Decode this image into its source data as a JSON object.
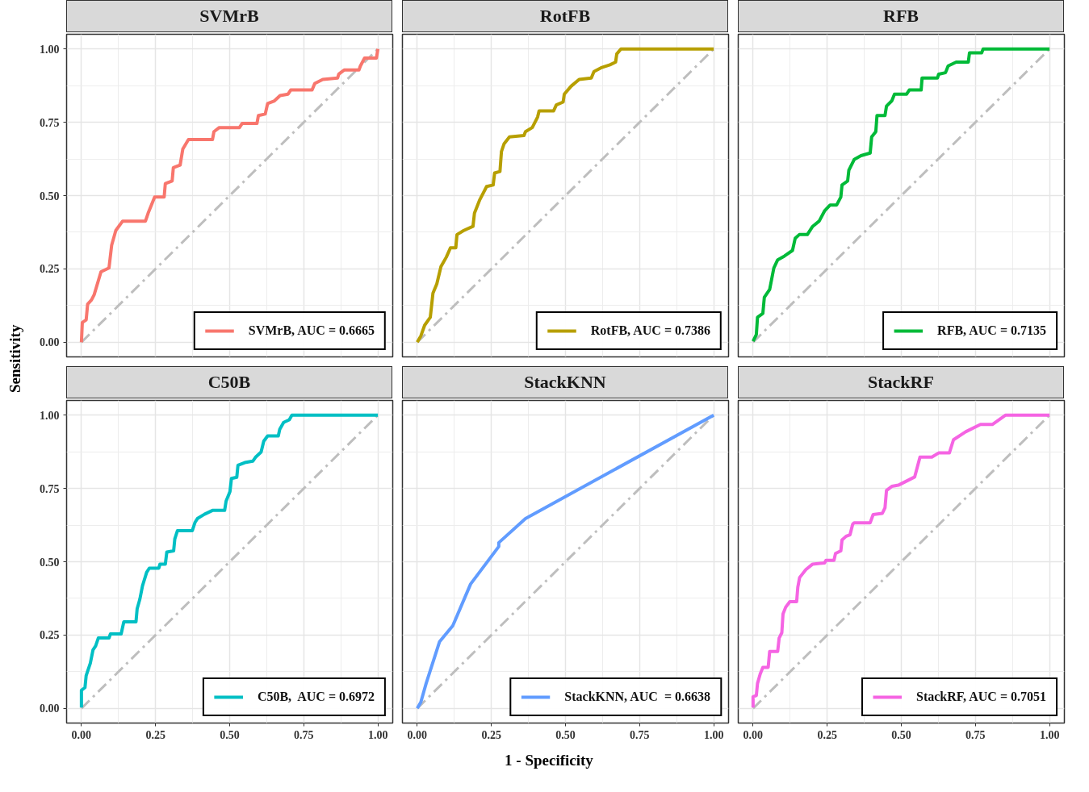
{
  "chart_data": [
    {
      "type": "line",
      "title": "SVMrB",
      "ylabel": "Sensitivity",
      "xlim": [
        -0.05,
        1.05
      ],
      "ylim": [
        -0.05,
        1.05
      ],
      "xticks": [
        0,
        0.25,
        0.5,
        0.75,
        1
      ],
      "yticks": [
        {
          "value": 0,
          "label": "0.00"
        },
        {
          "value": 0.25,
          "label": "0.25"
        },
        {
          "value": 0.5,
          "label": "0.50"
        },
        {
          "value": 0.75,
          "label": "0.75"
        },
        {
          "value": 1,
          "label": "1.00"
        }
      ],
      "tick_labels": "y",
      "grid": true,
      "legend": "bottom right",
      "series": [
        {
          "type": "line",
          "color": "#bebebe",
          "line_style": "dashed",
          "x": [
            0,
            1
          ],
          "values": [
            0,
            1
          ]
        },
        {
          "name": "SVMrB, AUC = 0.6665",
          "color": "#f8766d",
          "x": [
            0,
            0.003,
            0.016,
            0.021,
            0.034,
            0.043,
            0.066,
            0.093,
            0.102,
            0.116,
            0.139,
            0.216,
            0.225,
            0.247,
            0.279,
            0.283,
            0.306,
            0.31,
            0.333,
            0.342,
            0.361,
            0.442,
            0.447,
            0.465,
            0.533,
            0.542,
            0.592,
            0.597,
            0.62,
            0.628,
            0.651,
            0.67,
            0.697,
            0.706,
            0.778,
            0.787,
            0.814,
            0.864,
            0.868,
            0.886,
            0.936,
            0.941,
            0.955,
            0.995,
            1
          ],
          "values": [
            0,
            0.067,
            0.076,
            0.13,
            0.144,
            0.162,
            0.24,
            0.253,
            0.331,
            0.381,
            0.413,
            0.413,
            0.44,
            0.495,
            0.495,
            0.541,
            0.55,
            0.595,
            0.604,
            0.659,
            0.691,
            0.691,
            0.718,
            0.732,
            0.732,
            0.746,
            0.746,
            0.773,
            0.778,
            0.814,
            0.823,
            0.841,
            0.846,
            0.86,
            0.86,
            0.882,
            0.896,
            0.901,
            0.914,
            0.928,
            0.928,
            0.942,
            0.969,
            0.969,
            1
          ]
        }
      ]
    },
    {
      "type": "line",
      "title": "RotFB",
      "xlim": [
        -0.05,
        1.05
      ],
      "ylim": [
        -0.05,
        1.05
      ],
      "xticks": [
        0,
        0.25,
        0.5,
        0.75,
        1
      ],
      "yticks": [
        0,
        0.25,
        0.5,
        0.75,
        1
      ],
      "tick_labels": false,
      "grid": true,
      "legend": "bottom right",
      "series": [
        {
          "type": "line",
          "color": "#bebebe",
          "line_style": "dashed",
          "x": [
            0,
            1
          ],
          "values": [
            0,
            1
          ]
        },
        {
          "name": "RotFB, AUC = 0.7386",
          "color": "#b79f00",
          "x": [
            0,
            0.012,
            0.025,
            0.044,
            0.053,
            0.066,
            0.08,
            0.098,
            0.112,
            0.13,
            0.134,
            0.157,
            0.188,
            0.193,
            0.211,
            0.234,
            0.256,
            0.261,
            0.279,
            0.284,
            0.293,
            0.311,
            0.36,
            0.365,
            0.388,
            0.406,
            0.411,
            0.46,
            0.469,
            0.492,
            0.496,
            0.519,
            0.546,
            0.587,
            0.596,
            0.623,
            0.65,
            0.669,
            0.673,
            0.687,
            1
          ],
          "values": [
            0,
            0.021,
            0.058,
            0.085,
            0.167,
            0.199,
            0.258,
            0.29,
            0.322,
            0.322,
            0.367,
            0.381,
            0.395,
            0.44,
            0.486,
            0.531,
            0.536,
            0.577,
            0.582,
            0.65,
            0.677,
            0.7,
            0.705,
            0.718,
            0.732,
            0.768,
            0.789,
            0.789,
            0.809,
            0.819,
            0.846,
            0.873,
            0.896,
            0.901,
            0.923,
            0.937,
            0.946,
            0.955,
            0.983,
            1,
            1
          ]
        }
      ]
    },
    {
      "type": "line",
      "title": "RFB",
      "xlim": [
        -0.05,
        1.05
      ],
      "ylim": [
        -0.05,
        1.05
      ],
      "xticks": [
        0,
        0.25,
        0.5,
        0.75,
        1
      ],
      "yticks": [
        0,
        0.25,
        0.5,
        0.75,
        1
      ],
      "tick_labels": false,
      "grid": true,
      "legend": "bottom right",
      "series": [
        {
          "type": "line",
          "color": "#bebebe",
          "line_style": "dashed",
          "x": [
            0,
            1
          ],
          "values": [
            0,
            1
          ]
        },
        {
          "name": "RFB, AUC = 0.7135",
          "color": "#00ba38",
          "x": [
            0,
            0.011,
            0.015,
            0.033,
            0.038,
            0.056,
            0.07,
            0.083,
            0.106,
            0.133,
            0.142,
            0.156,
            0.183,
            0.201,
            0.223,
            0.242,
            0.26,
            0.282,
            0.296,
            0.3,
            0.319,
            0.323,
            0.341,
            0.364,
            0.395,
            0.4,
            0.414,
            0.418,
            0.445,
            0.45,
            0.468,
            0.477,
            0.518,
            0.527,
            0.567,
            0.57,
            0.622,
            0.626,
            0.649,
            0.658,
            0.685,
            0.726,
            0.73,
            0.771,
            0.776,
            1
          ],
          "values": [
            0.003,
            0.026,
            0.085,
            0.098,
            0.153,
            0.18,
            0.253,
            0.281,
            0.294,
            0.313,
            0.354,
            0.367,
            0.367,
            0.395,
            0.413,
            0.449,
            0.468,
            0.468,
            0.495,
            0.536,
            0.55,
            0.586,
            0.623,
            0.636,
            0.645,
            0.7,
            0.718,
            0.773,
            0.773,
            0.805,
            0.823,
            0.846,
            0.846,
            0.86,
            0.86,
            0.901,
            0.901,
            0.914,
            0.919,
            0.942,
            0.955,
            0.955,
            0.987,
            0.987,
            1,
            1
          ]
        }
      ]
    },
    {
      "type": "line",
      "title": "C50B",
      "xlim": [
        -0.05,
        1.05
      ],
      "ylim": [
        -0.05,
        1.05
      ],
      "xticks": [
        {
          "value": 0,
          "label": "0.00"
        },
        {
          "value": 0.25,
          "label": "0.25"
        },
        {
          "value": 0.5,
          "label": "0.50"
        },
        {
          "value": 0.75,
          "label": "0.75"
        },
        {
          "value": 1,
          "label": "1.00"
        }
      ],
      "yticks": [
        {
          "value": 0,
          "label": "0.00"
        },
        {
          "value": 0.25,
          "label": "0.25"
        },
        {
          "value": 0.5,
          "label": "0.50"
        },
        {
          "value": 0.75,
          "label": "0.75"
        },
        {
          "value": 1,
          "label": "1.00"
        }
      ],
      "grid": true,
      "legend": "bottom right",
      "series": [
        {
          "type": "line",
          "color": "#bebebe",
          "line_style": "dashed",
          "x": [
            0,
            1
          ],
          "values": [
            0,
            1
          ]
        },
        {
          "name": "C50B,  AUC = 0.6972",
          "color": "#00bfc4",
          "x": [
            0,
            0,
            0.012,
            0.016,
            0.03,
            0.039,
            0.048,
            0.057,
            0.093,
            0.098,
            0.134,
            0.143,
            0.184,
            0.188,
            0.197,
            0.206,
            0.22,
            0.229,
            0.261,
            0.265,
            0.283,
            0.288,
            0.311,
            0.315,
            0.324,
            0.374,
            0.383,
            0.392,
            0.415,
            0.442,
            0.483,
            0.488,
            0.501,
            0.506,
            0.524,
            0.528,
            0.551,
            0.578,
            0.587,
            0.606,
            0.615,
            0.628,
            0.664,
            0.669,
            0.682,
            0.701,
            0.71,
            1
          ],
          "values": [
            0.003,
            0.062,
            0.071,
            0.112,
            0.154,
            0.199,
            0.213,
            0.24,
            0.24,
            0.254,
            0.254,
            0.295,
            0.295,
            0.34,
            0.372,
            0.418,
            0.464,
            0.478,
            0.478,
            0.492,
            0.492,
            0.533,
            0.537,
            0.578,
            0.606,
            0.606,
            0.634,
            0.648,
            0.662,
            0.675,
            0.675,
            0.707,
            0.739,
            0.784,
            0.788,
            0.829,
            0.838,
            0.843,
            0.856,
            0.874,
            0.911,
            0.929,
            0.929,
            0.952,
            0.975,
            0.984,
            1,
            1
          ]
        }
      ]
    },
    {
      "type": "line",
      "title": "StackKNN",
      "xlabel": "1 - Specificity",
      "xlim": [
        -0.05,
        1.05
      ],
      "ylim": [
        -0.05,
        1.05
      ],
      "xticks": [
        {
          "value": 0,
          "label": "0.00"
        },
        {
          "value": 0.25,
          "label": "0.25"
        },
        {
          "value": 0.5,
          "label": "0.50"
        },
        {
          "value": 0.75,
          "label": "0.75"
        },
        {
          "value": 1,
          "label": "1.00"
        }
      ],
      "yticks": [
        0,
        0.25,
        0.5,
        0.75,
        1
      ],
      "tick_labels": "x",
      "grid": true,
      "legend": "bottom right",
      "series": [
        {
          "type": "line",
          "color": "#bebebe",
          "line_style": "dashed",
          "x": [
            0,
            1
          ],
          "values": [
            0,
            1
          ]
        },
        {
          "name": "StackKNN, AUC  = 0.6638",
          "color": "#619cff",
          "x": [
            0,
            0.012,
            0.03,
            0.075,
            0.12,
            0.18,
            0.275,
            0.275,
            0.365,
            1
          ],
          "values": [
            0,
            0.021,
            0.085,
            0.227,
            0.282,
            0.424,
            0.552,
            0.565,
            0.647,
            1
          ]
        }
      ]
    },
    {
      "type": "line",
      "title": "StackRF",
      "xlim": [
        -0.05,
        1.05
      ],
      "ylim": [
        -0.05,
        1.05
      ],
      "xticks": [
        {
          "value": 0,
          "label": "0.00"
        },
        {
          "value": 0.25,
          "label": "0.25"
        },
        {
          "value": 0.5,
          "label": "0.50"
        },
        {
          "value": 0.75,
          "label": "0.75"
        },
        {
          "value": 1,
          "label": "1.00"
        }
      ],
      "yticks": [
        0,
        0.25,
        0.5,
        0.75,
        1
      ],
      "tick_labels": "x",
      "grid": true,
      "legend": "bottom right",
      "series": [
        {
          "type": "line",
          "color": "#bebebe",
          "line_style": "dashed",
          "x": [
            0,
            1
          ],
          "values": [
            0,
            1
          ]
        },
        {
          "name": "StackRF, AUC = 0.7051",
          "color": "#f564e3",
          "x": [
            0,
            0,
            0.011,
            0.015,
            0.024,
            0.033,
            0.051,
            0.056,
            0.083,
            0.088,
            0.097,
            0.101,
            0.11,
            0.124,
            0.147,
            0.151,
            0.157,
            0.178,
            0.201,
            0.241,
            0.246,
            0.273,
            0.278,
            0.296,
            0.3,
            0.314,
            0.327,
            0.336,
            0.341,
            0.395,
            0.405,
            0.436,
            0.445,
            0.45,
            0.468,
            0.49,
            0.545,
            0.563,
            0.603,
            0.626,
            0.662,
            0.676,
            0.717,
            0.767,
            0.807,
            0.852,
            1
          ],
          "values": [
            0.003,
            0.04,
            0.044,
            0.085,
            0.117,
            0.14,
            0.14,
            0.194,
            0.194,
            0.24,
            0.258,
            0.322,
            0.345,
            0.364,
            0.364,
            0.414,
            0.446,
            0.473,
            0.492,
            0.496,
            0.505,
            0.505,
            0.528,
            0.537,
            0.574,
            0.587,
            0.592,
            0.628,
            0.633,
            0.633,
            0.661,
            0.665,
            0.684,
            0.743,
            0.757,
            0.761,
            0.789,
            0.857,
            0.857,
            0.871,
            0.871,
            0.916,
            0.943,
            0.968,
            0.968,
            1,
            1
          ]
        }
      ]
    }
  ]
}
